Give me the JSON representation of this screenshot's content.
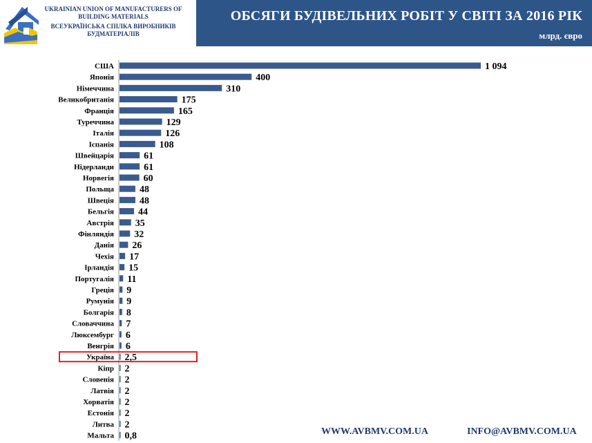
{
  "header": {
    "org_en": "UKRAINIAN UNION OF MANUFACTURERS OF BUILDING MATERIALS",
    "org_ua": "ВСЕУКРАЇНСЬКА СПІЛКА ВИРОБНИКІВ БУДМАТЕРІАЛІВ",
    "title": "ОБСЯГИ БУДІВЕЛЬНИХ РОБІТ У СВІТІ ЗА 2016 РІК",
    "units": "млрд. євро"
  },
  "colors": {
    "banner": "#2e5588",
    "bar": "#3b5b8f",
    "highlight": "#e02020",
    "logo_blue": "#3a6fc4",
    "logo_yellow": "#f2c500",
    "text": "#000000"
  },
  "chart_data": {
    "type": "bar",
    "orientation": "horizontal",
    "title": "ОБСЯГИ БУДІВЕЛЬНИХ РОБІТ У СВІТІ ЗА 2016 РІК",
    "unit": "млрд. євро",
    "categories": [
      "США",
      "Японія",
      "Німеччина",
      "Великобританія",
      "Франція",
      "Туреччина",
      "Італія",
      "Іспанія",
      "Швейцарія",
      "Нідерланди",
      "Норвегія",
      "Польща",
      "Швеція",
      "Бельгія",
      "Австрія",
      "Фінляндія",
      "Данія",
      "Чехія",
      "Ірландія",
      "Португалія",
      "Греція",
      "Румунія",
      "Болгарія",
      "Словаччина",
      "Люксембург",
      "Венгрія",
      "Україна",
      "Кіпр",
      "Словенія",
      "Латвія",
      "Хорватія",
      "Естонія",
      "Литва",
      "Мальта"
    ],
    "values": [
      1094,
      400,
      310,
      175,
      165,
      129,
      126,
      108,
      61,
      61,
      60,
      48,
      48,
      44,
      35,
      32,
      26,
      17,
      15,
      11,
      9,
      9,
      8,
      7,
      6,
      6,
      2.5,
      2,
      2,
      2,
      2,
      2,
      2,
      0.8
    ],
    "value_labels": [
      "1 094",
      "400",
      "310",
      "175",
      "165",
      "129",
      "126",
      "108",
      "61",
      "61",
      "60",
      "48",
      "48",
      "44",
      "35",
      "32",
      "26",
      "17",
      "15",
      "11",
      "9",
      "9",
      "8",
      "7",
      "6",
      "6",
      "2,5",
      "2",
      "2",
      "2",
      "2",
      "2",
      "2",
      "0,8"
    ],
    "highlighted": "Україна",
    "xlim": [
      0,
      1094
    ],
    "grid": false,
    "legend": "none"
  },
  "footer": {
    "website": "WWW.AVBMV.COM.UA",
    "email": "INFO@AVBMV.COM.UA"
  }
}
